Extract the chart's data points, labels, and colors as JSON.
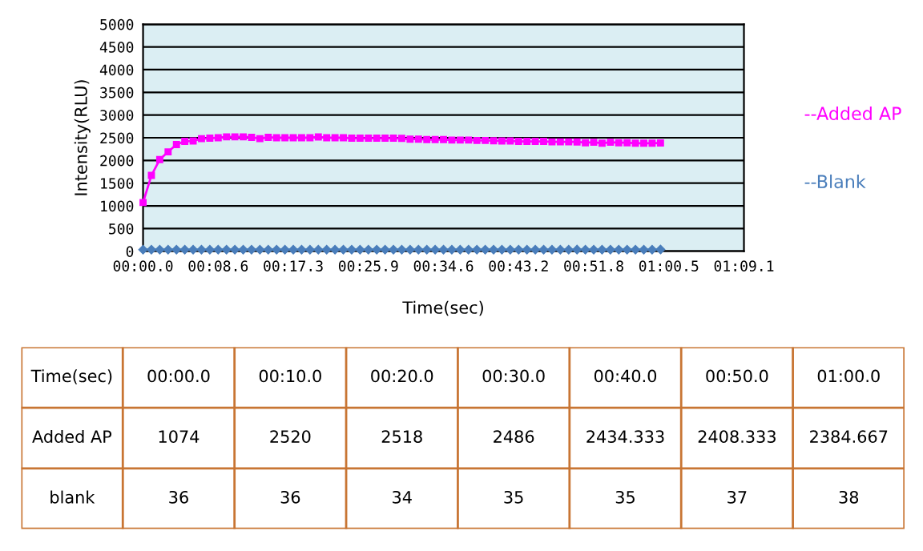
{
  "chart_data": [
    {
      "type": "line",
      "xlabel": "Time(sec)",
      "ylabel": "Intensity(RLU)",
      "categories": [
        "00:00.0",
        null,
        null,
        null,
        null,
        null,
        null,
        null,
        null,
        "00:08.6",
        null,
        null,
        null,
        null,
        null,
        null,
        null,
        null,
        "00:17.3",
        null,
        null,
        null,
        null,
        null,
        null,
        null,
        null,
        "00:25.9",
        null,
        null,
        null,
        null,
        null,
        null,
        null,
        null,
        "00:34.6",
        null,
        null,
        null,
        null,
        null,
        null,
        null,
        null,
        "00:43.2",
        null,
        null,
        null,
        null,
        null,
        null,
        null,
        null,
        "00:51.8",
        null,
        null,
        null,
        null,
        null,
        null,
        null,
        null,
        "01:00.5",
        null,
        null,
        null,
        null,
        null,
        null,
        null,
        null,
        "01:09.1"
      ],
      "series": [
        {
          "name": "--Added AP",
          "color": "#ff00ff",
          "marker": "square",
          "values": [
            1074,
            1670,
            2020,
            2190,
            2350,
            2420,
            2430,
            2480,
            2490,
            2500,
            2520,
            2520,
            2520,
            2510,
            2480,
            2510,
            2500,
            2500,
            2500,
            2500,
            2500,
            2518,
            2500,
            2500,
            2500,
            2490,
            2490,
            2490,
            2490,
            2490,
            2490,
            2486,
            2470,
            2470,
            2460,
            2460,
            2460,
            2450,
            2450,
            2450,
            2440,
            2440,
            2434.333,
            2430,
            2430,
            2420,
            2420,
            2420,
            2420,
            2410,
            2410,
            2410,
            2408.333,
            2390,
            2400,
            2380,
            2400,
            2390,
            2390,
            2380,
            2380,
            2380,
            2384.667,
            null,
            null,
            null,
            null,
            null,
            null,
            null,
            null,
            null,
            null
          ]
        },
        {
          "name": "--Blank",
          "color": "#4a7ebb",
          "marker": "diamond",
          "values": [
            36,
            35,
            35,
            35,
            35,
            35,
            35,
            35,
            35,
            35,
            36,
            35,
            35,
            35,
            35,
            35,
            35,
            35,
            35,
            35,
            35,
            34,
            35,
            35,
            35,
            35,
            35,
            35,
            35,
            35,
            35,
            35,
            35,
            35,
            35,
            35,
            35,
            35,
            35,
            35,
            35,
            35,
            35,
            35,
            35,
            35,
            35,
            35,
            35,
            35,
            35,
            35,
            37,
            35,
            35,
            35,
            35,
            35,
            35,
            35,
            35,
            35,
            38,
            null,
            null,
            null,
            null,
            null,
            null,
            null,
            null,
            null,
            null
          ]
        }
      ],
      "ylim": [
        0,
        5000
      ],
      "yticks": [
        0,
        500,
        1000,
        1500,
        2000,
        2500,
        3000,
        3500,
        4000,
        4500,
        5000
      ],
      "grid": "y",
      "legend": "right",
      "line_style": "solid"
    },
    {
      "type": "other",
      "annotations": [
        "Time(sec)",
        "00:00.0",
        "00:10.0",
        "00:20.0",
        "00:30.0",
        "00:40.0",
        "00:50.0",
        "01:00.0",
        "Added AP",
        "1074",
        "2520",
        "2518",
        "2486",
        "2434.333",
        "2408.333",
        "2384.667",
        "blank",
        "36",
        "36",
        "34",
        "35",
        "35",
        "37",
        "38"
      ]
    }
  ]
}
